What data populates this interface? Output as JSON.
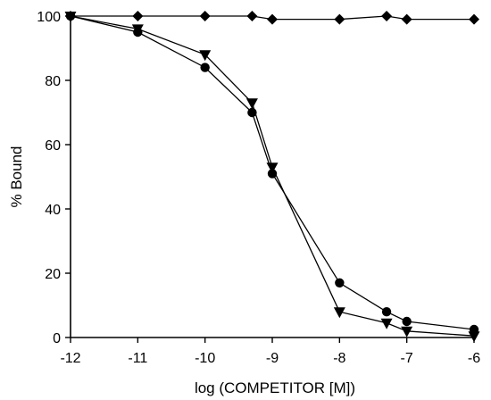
{
  "chart_data": {
    "type": "line",
    "title": "",
    "xlabel": "log (COMPETITOR [M])",
    "ylabel": "% Bound",
    "xlim": [
      -12,
      -6
    ],
    "ylim": [
      0,
      100
    ],
    "xticks": [
      -12,
      -11,
      -10,
      -9,
      -8,
      -7,
      -6
    ],
    "yticks": [
      0,
      20,
      40,
      60,
      80,
      100
    ],
    "grid": false,
    "legend": "none",
    "series": [
      {
        "marker": "diamond",
        "color": "#000000",
        "x": [
          -12,
          -11,
          -10,
          -9.3,
          -9,
          -8,
          -7.3,
          -7,
          -6
        ],
        "y": [
          100,
          100,
          100,
          100,
          99,
          99,
          100,
          99,
          99
        ]
      },
      {
        "marker": "triangle-down",
        "color": "#000000",
        "x": [
          -12,
          -11,
          -10,
          -9.3,
          -9,
          -8,
          -7.3,
          -7,
          -6
        ],
        "y": [
          100,
          96,
          88,
          73,
          53,
          8,
          4.5,
          2,
          0.5
        ]
      },
      {
        "marker": "circle",
        "color": "#000000",
        "x": [
          -12,
          -11,
          -10,
          -9.3,
          -9,
          -8,
          -7.3,
          -7,
          -6
        ],
        "y": [
          100,
          95,
          84,
          70,
          51,
          17,
          8,
          5,
          2.5
        ]
      }
    ]
  }
}
